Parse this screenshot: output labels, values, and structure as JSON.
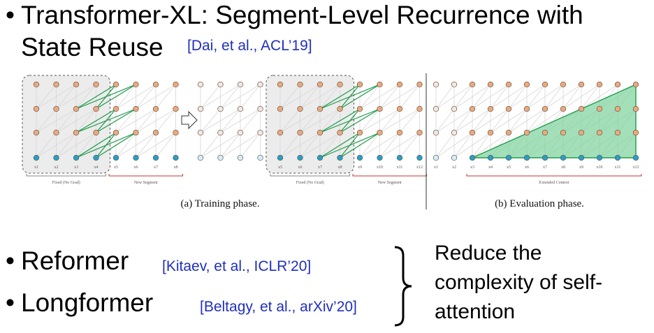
{
  "bullets": [
    {
      "title_line1": "Transformer-XL: Segment-Level Recurrence with",
      "title_line2": "State Reuse",
      "citation": "[Dai, et al., ACL’19]"
    },
    {
      "title": "Reformer",
      "citation": "[Kitaev, et al., ICLR’20]"
    },
    {
      "title": "Longformer",
      "citation": "[Beltagy, et al., arXiv’20]"
    }
  ],
  "bullet_symbol": "•",
  "brace_note": {
    "line1": "Reduce the",
    "line2": "complexity of self-",
    "line3": "attention"
  },
  "figure": {
    "train_caption": "(a) Training phase.",
    "eval_caption": "(b) Evaluation phase.",
    "fixed_label": "Fixed (No Grad)",
    "new_segment_label": "New Segment",
    "extended_context_label": "Extended Context",
    "train_a_tokens": [
      "x1",
      "x2",
      "x3",
      "x4",
      "x5",
      "x6",
      "x7",
      "x8"
    ],
    "train_b_tokens": [
      "x5",
      "x6",
      "x7",
      "x8",
      "x9",
      "x10",
      "x11",
      "x12"
    ],
    "eval_tokens": [
      "x1",
      "x2",
      "x3",
      "x4",
      "x5",
      "x6",
      "x7",
      "x8",
      "x9",
      "x10",
      "x11",
      "x12"
    ],
    "colors": {
      "input": "#2a9fc4",
      "hidden": "#f0a878",
      "faded_input": "#d8eef6",
      "faded_hidden": "#f8e6da",
      "green": "#1f9a4a",
      "bracket": "#c0392b"
    }
  }
}
